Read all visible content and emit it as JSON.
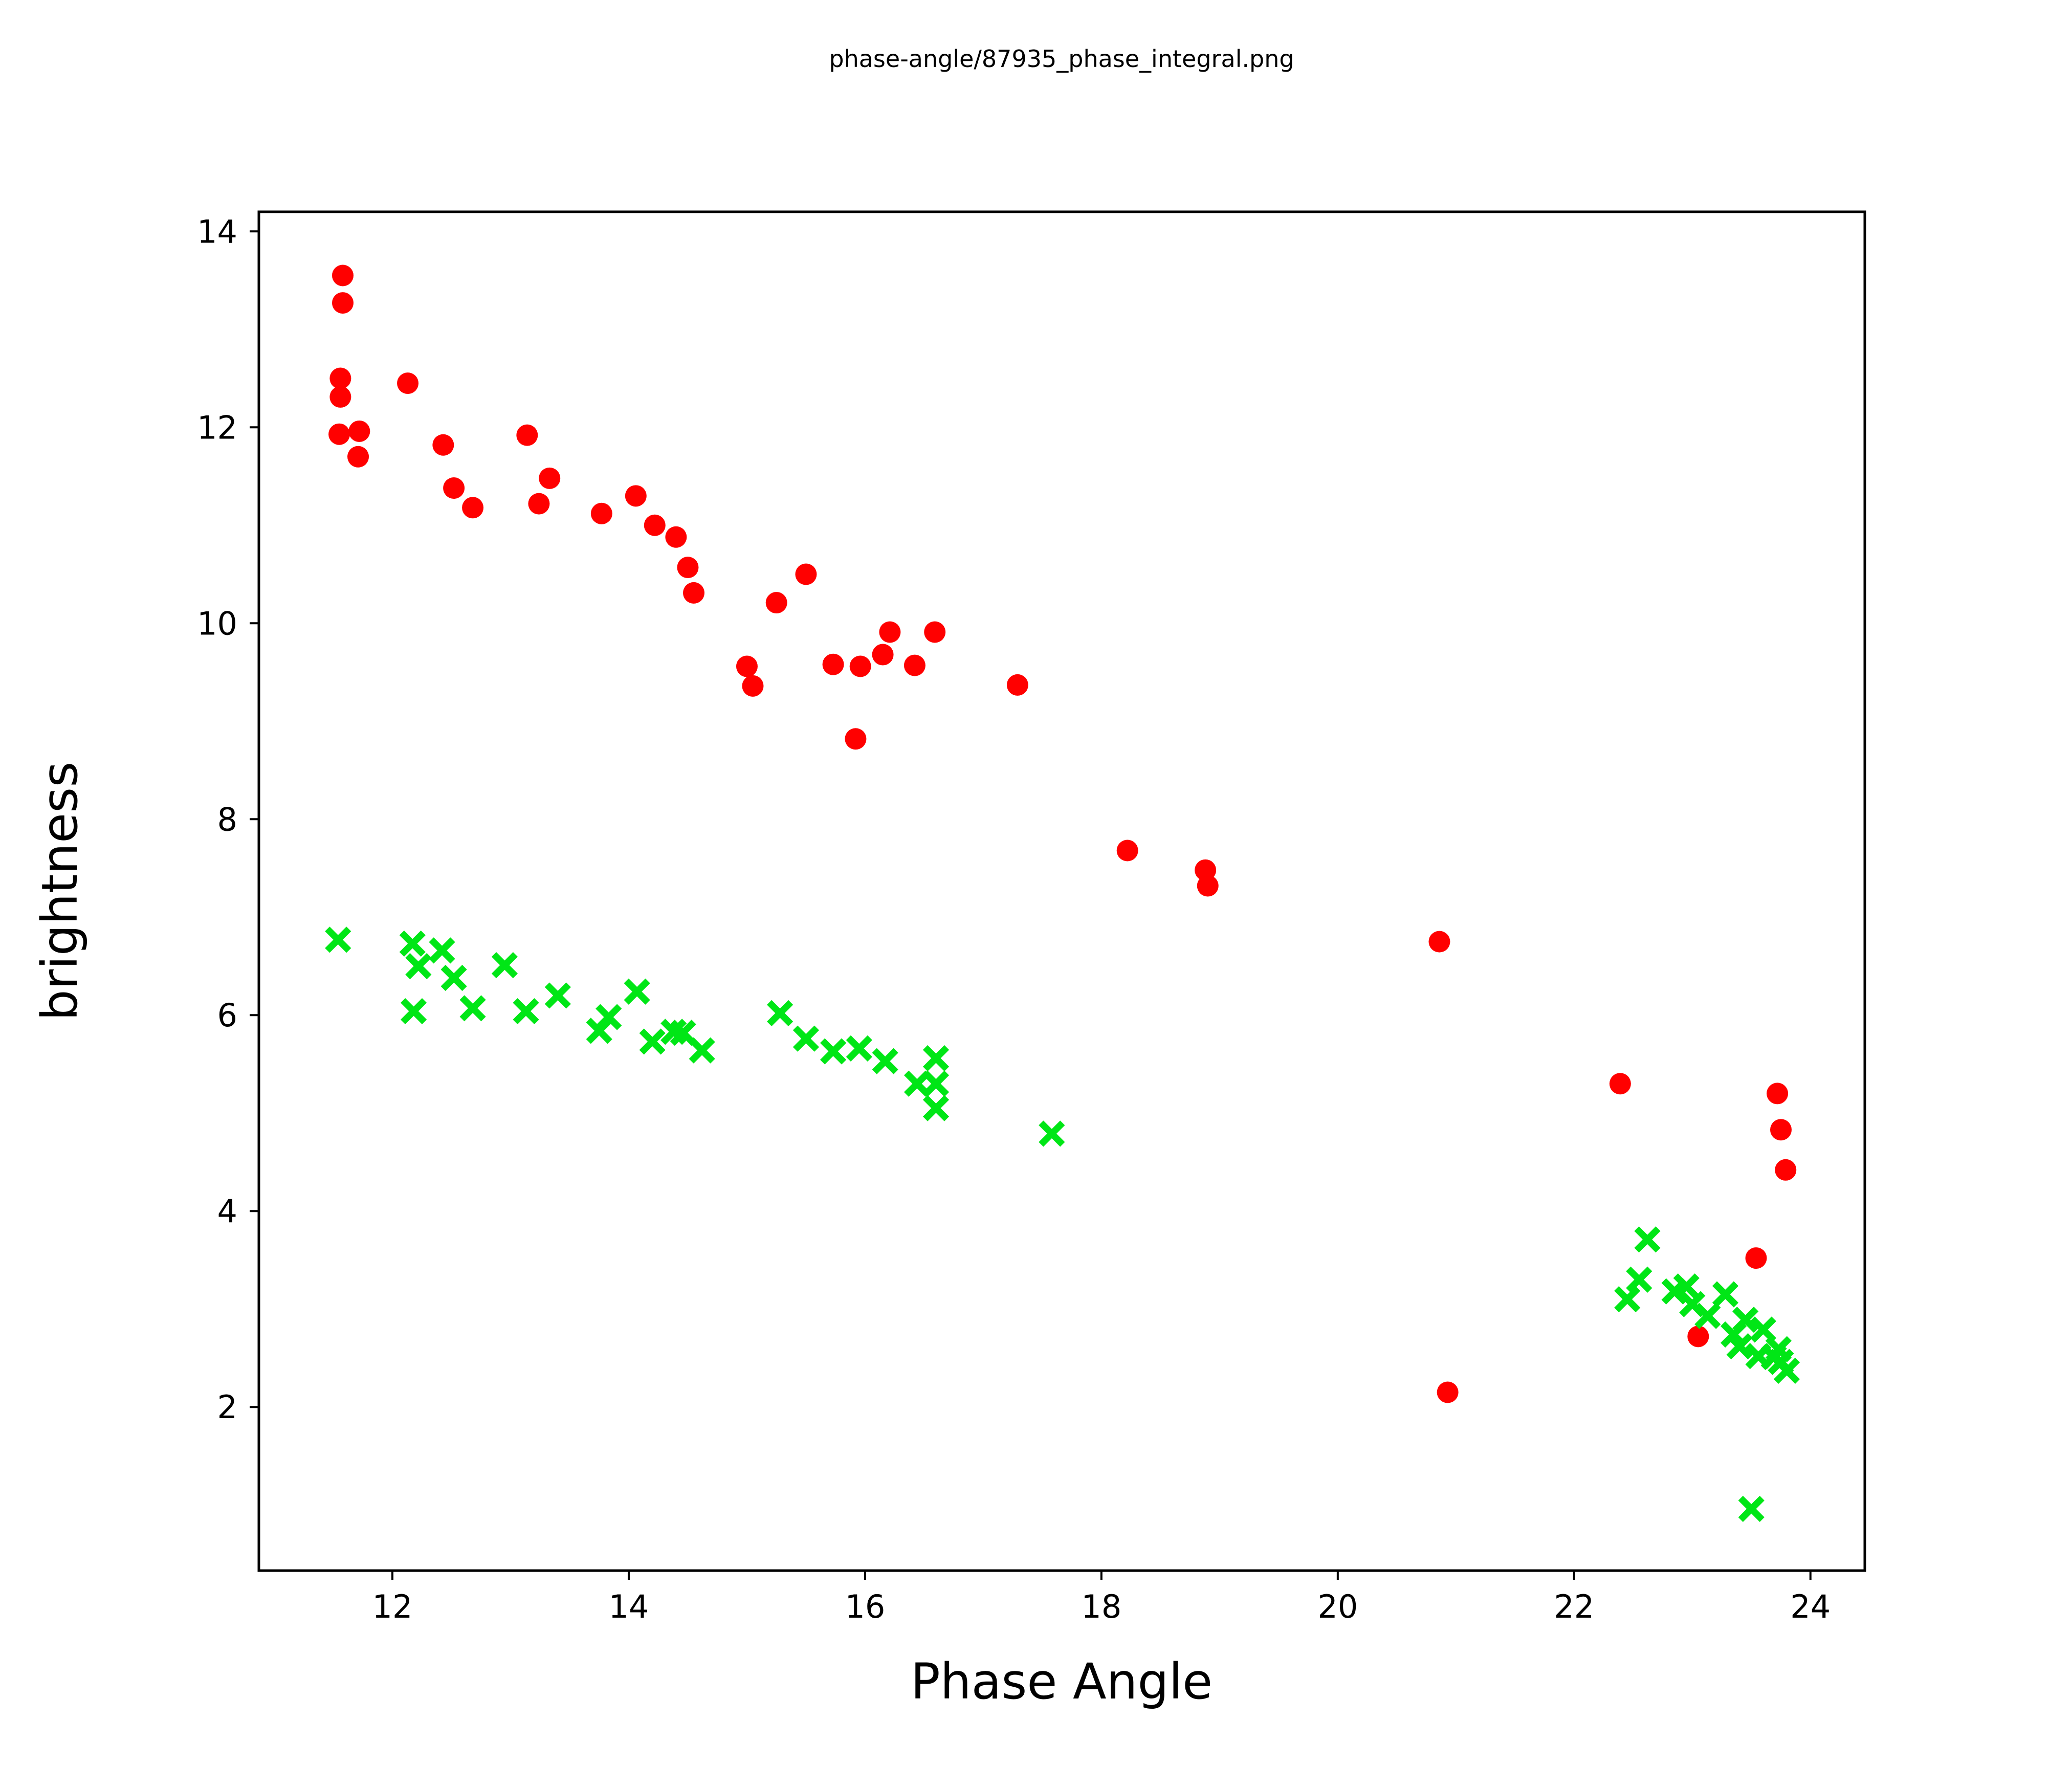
{
  "title": "phase-angle/87935_phase_integral.png",
  "chart_data": {
    "type": "scatter",
    "title": "phase-angle/87935_phase_integral.png",
    "xlabel": "Phase Angle",
    "ylabel": "brightness",
    "xlim": [
      10.87,
      24.46
    ],
    "ylim": [
      0.33,
      14.2
    ],
    "x_ticks": [
      12,
      14,
      16,
      18,
      20,
      22,
      24
    ],
    "y_ticks": [
      2,
      4,
      6,
      8,
      10,
      12,
      14
    ],
    "grid": false,
    "legend_position": "none",
    "background_color": "#ffffff",
    "axis_color": "#000000",
    "series": [
      {
        "name": "red-circles",
        "marker": "circle",
        "color": "#ff0000",
        "points": [
          [
            11.58,
            13.55
          ],
          [
            11.58,
            13.27
          ],
          [
            11.56,
            12.5
          ],
          [
            11.56,
            12.31
          ],
          [
            11.55,
            11.93
          ],
          [
            11.72,
            11.96
          ],
          [
            11.71,
            11.7
          ],
          [
            12.13,
            12.45
          ],
          [
            12.43,
            11.82
          ],
          [
            12.52,
            11.38
          ],
          [
            12.68,
            11.18
          ],
          [
            13.14,
            11.92
          ],
          [
            13.33,
            11.48
          ],
          [
            13.24,
            11.22
          ],
          [
            13.77,
            11.12
          ],
          [
            14.06,
            11.3
          ],
          [
            14.22,
            11.0
          ],
          [
            14.4,
            10.88
          ],
          [
            14.5,
            10.57
          ],
          [
            14.55,
            10.31
          ],
          [
            15.0,
            9.56
          ],
          [
            15.05,
            9.36
          ],
          [
            15.25,
            10.21
          ],
          [
            15.5,
            10.5
          ],
          [
            15.73,
            9.58
          ],
          [
            15.92,
            8.82
          ],
          [
            15.96,
            9.56
          ],
          [
            16.15,
            9.68
          ],
          [
            16.21,
            9.91
          ],
          [
            16.42,
            9.57
          ],
          [
            16.59,
            9.91
          ],
          [
            17.29,
            9.37
          ],
          [
            18.22,
            7.68
          ],
          [
            18.88,
            7.48
          ],
          [
            18.9,
            7.32
          ],
          [
            20.86,
            6.75
          ],
          [
            20.93,
            2.15
          ],
          [
            22.39,
            5.3
          ],
          [
            23.05,
            2.72
          ],
          [
            23.54,
            3.52
          ],
          [
            23.72,
            5.2
          ],
          [
            23.75,
            4.83
          ],
          [
            23.79,
            4.42
          ]
        ]
      },
      {
        "name": "green-crosses",
        "marker": "x",
        "color": "#00e616",
        "points": [
          [
            11.54,
            6.77
          ],
          [
            12.17,
            6.73
          ],
          [
            12.42,
            6.66
          ],
          [
            12.22,
            6.5
          ],
          [
            12.52,
            6.38
          ],
          [
            12.95,
            6.51
          ],
          [
            12.18,
            6.04
          ],
          [
            12.68,
            6.07
          ],
          [
            13.13,
            6.04
          ],
          [
            13.4,
            6.2
          ],
          [
            13.75,
            5.84
          ],
          [
            13.83,
            5.98
          ],
          [
            14.07,
            6.24
          ],
          [
            14.2,
            5.73
          ],
          [
            14.38,
            5.83
          ],
          [
            14.46,
            5.82
          ],
          [
            14.62,
            5.64
          ],
          [
            15.28,
            6.02
          ],
          [
            15.5,
            5.76
          ],
          [
            15.73,
            5.63
          ],
          [
            15.95,
            5.66
          ],
          [
            16.17,
            5.53
          ],
          [
            16.44,
            5.3
          ],
          [
            16.6,
            5.3
          ],
          [
            16.6,
            5.56
          ],
          [
            16.6,
            5.05
          ],
          [
            17.58,
            4.79
          ],
          [
            22.45,
            3.1
          ],
          [
            22.55,
            3.3
          ],
          [
            22.62,
            3.71
          ],
          [
            22.85,
            3.18
          ],
          [
            22.95,
            3.23
          ],
          [
            23.0,
            3.05
          ],
          [
            23.13,
            2.93
          ],
          [
            23.28,
            3.15
          ],
          [
            23.35,
            2.74
          ],
          [
            23.4,
            2.62
          ],
          [
            23.45,
            2.89
          ],
          [
            23.56,
            2.52
          ],
          [
            23.6,
            2.79
          ],
          [
            23.69,
            2.51
          ],
          [
            23.73,
            2.59
          ],
          [
            23.75,
            2.46
          ],
          [
            23.8,
            2.37
          ],
          [
            23.5,
            0.96
          ]
        ]
      }
    ]
  }
}
